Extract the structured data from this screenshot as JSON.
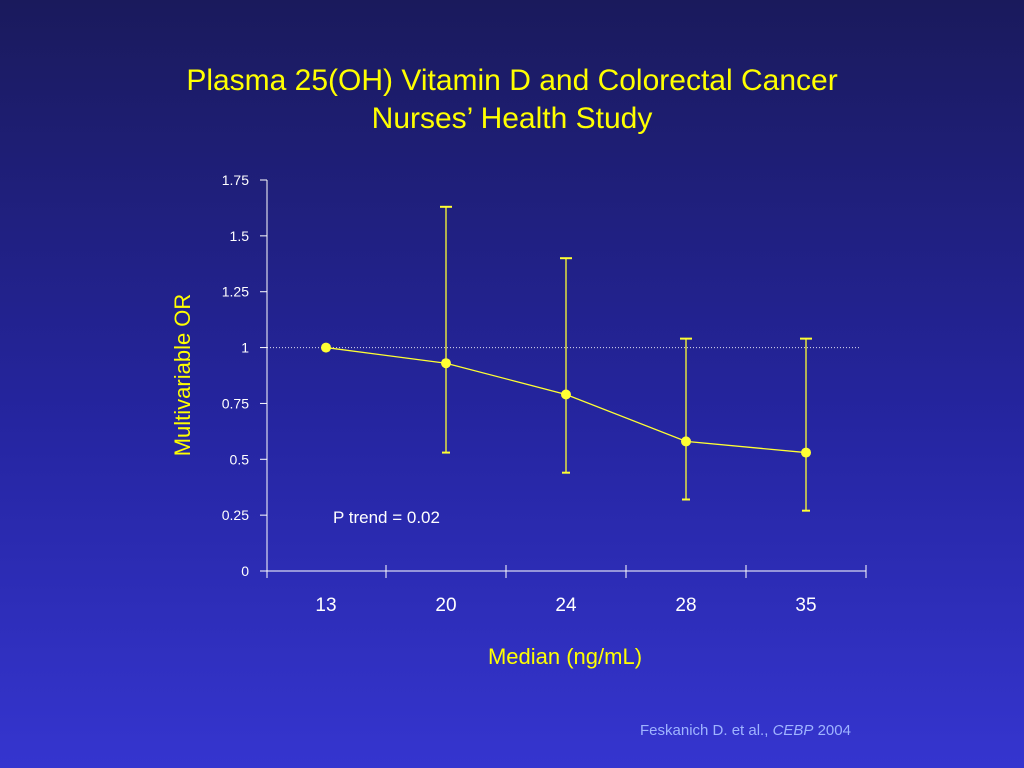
{
  "slide": {
    "title_line1": "Plasma  25(OH) Vitamin D and Colorectal Cancer",
    "title_line2": "Nurses’ Health Study"
  },
  "citation": {
    "authors": "Feskanich D. et al., ",
    "journal": "CEBP",
    "year": " 2004"
  },
  "annotation": "P trend = 0.02",
  "colors": {
    "text": "#ffff00",
    "axis": "#ffffff",
    "series": "#ffff33",
    "reference_line": "#ffffff",
    "citation": "#9fb4ff"
  },
  "chart_data": {
    "type": "line",
    "title": "Plasma  25(OH) Vitamin D and Colorectal Cancer",
    "subtitle": "Nurses’ Health Study",
    "xlabel": "Median (ng/mL)",
    "ylabel": "Multivariable OR",
    "categories": [
      "13",
      "20",
      "24",
      "28",
      "35"
    ],
    "series": [
      {
        "values": [
          1.0,
          0.93,
          0.79,
          0.58,
          0.53
        ],
        "ci_lower": [
          null,
          0.53,
          0.44,
          0.32,
          0.27
        ],
        "ci_upper": [
          null,
          1.63,
          1.4,
          1.04,
          1.04
        ]
      }
    ],
    "reference_line": 1,
    "ylim": [
      0,
      1.75
    ],
    "yticks": [
      0,
      0.25,
      0.5,
      0.75,
      1,
      1.25,
      1.5,
      1.75
    ],
    "ytick_labels": [
      "0",
      "0.25",
      "0.5",
      "0.75",
      "1",
      "1.25",
      "1.5",
      "1.75"
    ],
    "grid": false,
    "legend": "none"
  }
}
